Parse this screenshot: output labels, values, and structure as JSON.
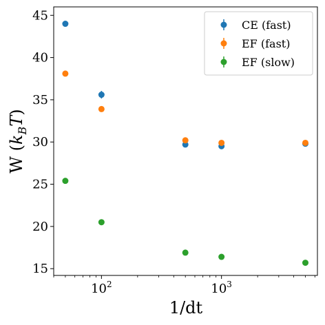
{
  "chart_data": {
    "type": "scatter",
    "xlabel": "1/dt",
    "ylabel": "W (k_B T)",
    "ylabel_parts": {
      "prefix": "W (",
      "k": "k",
      "sub": "B",
      "T": "T",
      "suffix": ")"
    },
    "xscale": "log",
    "xlim": [
      40,
      6300
    ],
    "ylim": [
      14.2,
      46.0
    ],
    "xticks": [
      {
        "value": 100,
        "base": "10",
        "exp": "2"
      },
      {
        "value": 1000,
        "base": "10",
        "exp": "3"
      }
    ],
    "yticks": [
      15,
      20,
      25,
      30,
      35,
      40,
      45
    ],
    "grid": false,
    "legend_position": "top-right",
    "series": [
      {
        "name": "CE (fast)",
        "color": "#1f77b4",
        "x": [
          50,
          100,
          500,
          1000,
          5000
        ],
        "y": [
          44.0,
          35.6,
          29.7,
          29.5,
          29.8
        ],
        "yerr": [
          0.25,
          0.45,
          0.3,
          0.3,
          0.25
        ]
      },
      {
        "name": "EF (fast)",
        "color": "#ff7f0e",
        "x": [
          50,
          100,
          500,
          1000,
          5000
        ],
        "y": [
          38.1,
          33.9,
          30.2,
          29.9,
          29.9
        ],
        "yerr": [
          0.2,
          0.15,
          0.2,
          0.2,
          0.2
        ]
      },
      {
        "name": "EF (slow)",
        "color": "#2ca02c",
        "x": [
          50,
          100,
          500,
          1000,
          5000
        ],
        "y": [
          25.4,
          20.5,
          16.9,
          16.4,
          15.7
        ],
        "yerr": [
          0.1,
          0.1,
          0.1,
          0.1,
          0.1
        ]
      }
    ]
  }
}
